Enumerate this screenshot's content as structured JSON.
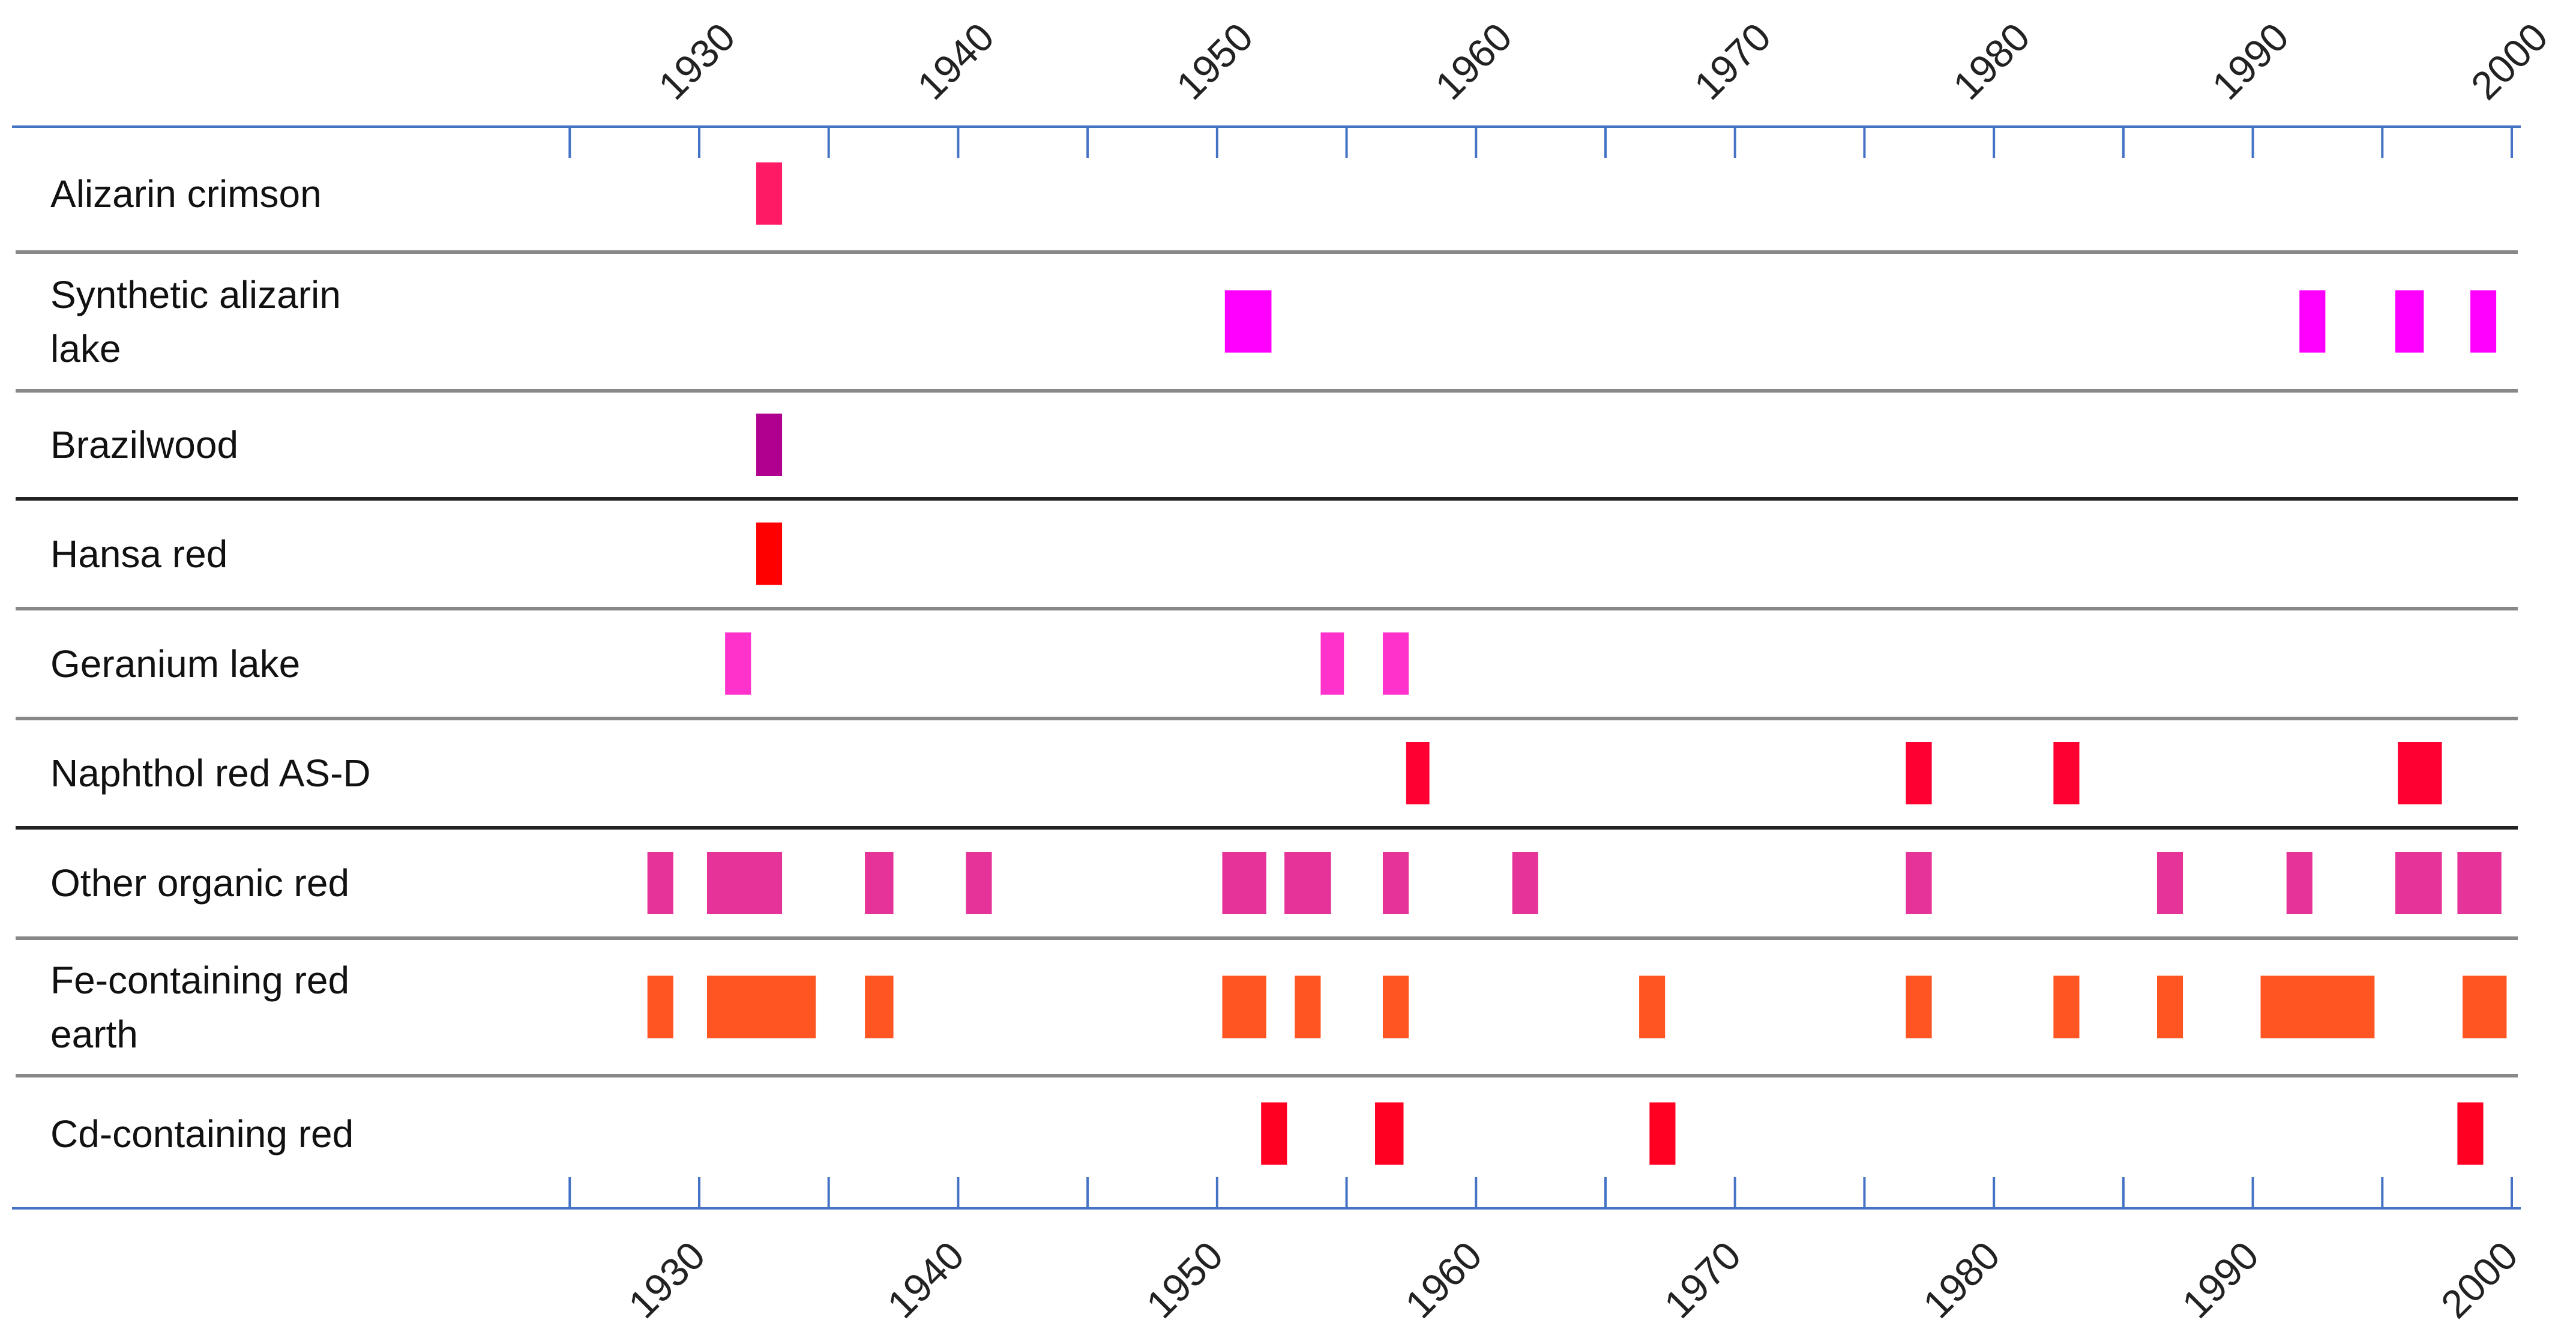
{
  "chart_data": {
    "type": "timeline",
    "x_tick_labels": [
      "1930",
      "1940",
      "1950",
      "1960",
      "1970",
      "1980",
      "1990",
      "2000"
    ],
    "x_ticks": [
      1930,
      1940,
      1950,
      1960,
      1970,
      1980,
      1990,
      2000
    ],
    "xlim": [
      1925,
      2000
    ],
    "rows": [
      {
        "label": "Alizarin crimson",
        "color": "#ff1a66",
        "bars": [
          [
            1932.2,
            1933.2
          ]
        ]
      },
      {
        "label": "Synthetic alizarin lake",
        "color": "#ff00ff",
        "bars": [
          [
            1950.3,
            1952.1
          ],
          [
            1991.8,
            1992.8
          ],
          [
            1995.5,
            1996.6
          ],
          [
            1998.4,
            1999.4
          ]
        ]
      },
      {
        "label": "Brazilwood",
        "color": "#b0008f",
        "bars": [
          [
            1932.2,
            1933.2
          ]
        ]
      },
      {
        "label": "Hansa red",
        "color": "#ff0000",
        "bars": [
          [
            1932.2,
            1933.2
          ]
        ]
      },
      {
        "label": "Geranium lake",
        "color": "#ff33cc",
        "bars": [
          [
            1931.0,
            1932.0
          ],
          [
            1954.0,
            1954.9
          ],
          [
            1956.4,
            1957.4
          ]
        ]
      },
      {
        "label": "Naphthol red AS-D",
        "color": "#ff0033",
        "bars": [
          [
            1957.3,
            1958.2
          ],
          [
            1976.6,
            1977.6
          ],
          [
            1982.3,
            1983.3
          ],
          [
            1995.6,
            1997.3
          ]
        ]
      },
      {
        "label": "Other organic red",
        "color": "#e6339a",
        "bars": [
          [
            1928.0,
            1929.0
          ],
          [
            1930.3,
            1933.2
          ],
          [
            1936.4,
            1937.5
          ],
          [
            1940.3,
            1941.3
          ],
          [
            1950.2,
            1951.9
          ],
          [
            1952.6,
            1954.4
          ],
          [
            1956.4,
            1957.4
          ],
          [
            1961.4,
            1962.4
          ],
          [
            1976.6,
            1977.6
          ],
          [
            1986.3,
            1987.3
          ],
          [
            1991.3,
            1992.3
          ],
          [
            1995.5,
            1997.3
          ],
          [
            1997.9,
            1999.6
          ]
        ]
      },
      {
        "label": "Fe-containing red earth",
        "color": "#ff5522",
        "bars": [
          [
            1928.0,
            1929.0
          ],
          [
            1930.3,
            1934.5
          ],
          [
            1936.4,
            1937.5
          ],
          [
            1950.2,
            1951.9
          ],
          [
            1953.0,
            1954.0
          ],
          [
            1956.4,
            1957.4
          ],
          [
            1966.3,
            1967.3
          ],
          [
            1976.6,
            1977.6
          ],
          [
            1982.3,
            1983.3
          ],
          [
            1986.3,
            1987.3
          ],
          [
            1990.3,
            1994.7
          ],
          [
            1998.1,
            1999.8
          ]
        ]
      },
      {
        "label": "Cd-containing red",
        "color": "#ff0022",
        "bars": [
          [
            1951.7,
            1952.7
          ],
          [
            1956.1,
            1957.2
          ],
          [
            1966.7,
            1967.7
          ],
          [
            1997.9,
            1998.9
          ]
        ]
      }
    ]
  }
}
